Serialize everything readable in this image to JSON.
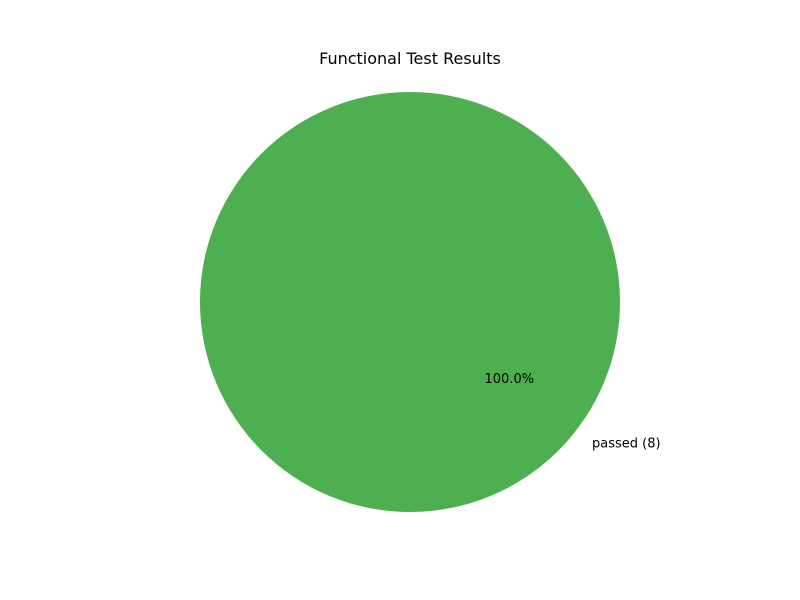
{
  "chart_data": {
    "type": "pie",
    "title": "Functional Test Results",
    "slices": [
      {
        "label": "passed (8)",
        "value": 8,
        "percent_label": "100.0%",
        "color": "#4daf4f"
      }
    ],
    "legend": "none"
  }
}
